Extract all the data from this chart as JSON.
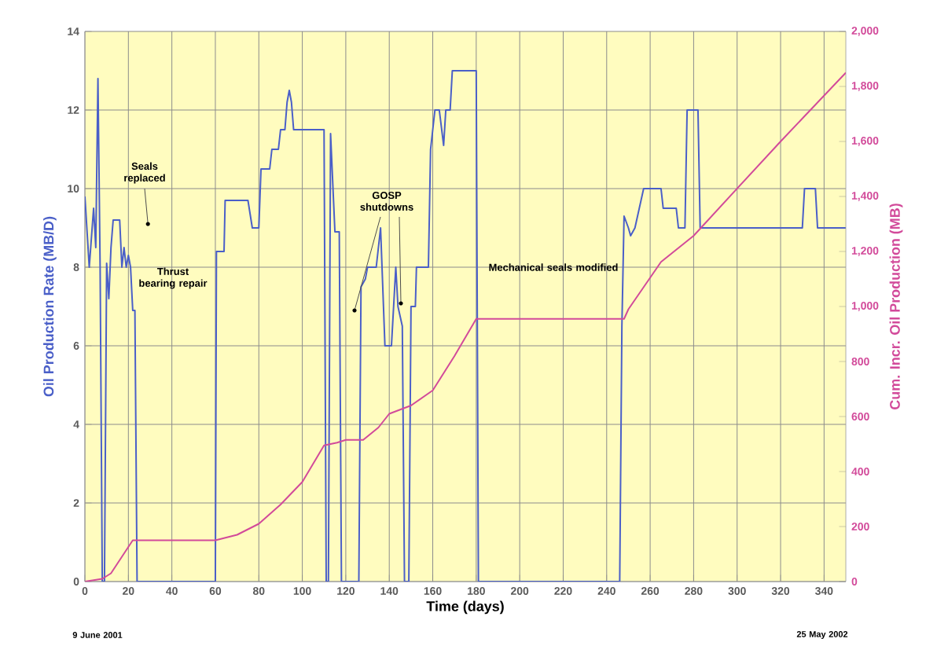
{
  "chart_data": {
    "type": "line",
    "xlabel": "Time (days)",
    "ylabel": "Oil Production Rate (MB/D)",
    "y2label": "Cum. Incr. Oil Production (MB)",
    "xlim": [
      0,
      350
    ],
    "xticks": [
      0,
      20,
      40,
      60,
      80,
      100,
      120,
      140,
      160,
      180,
      200,
      220,
      240,
      260,
      280,
      300,
      320,
      340
    ],
    "ylim": [
      0,
      14
    ],
    "yticks": [
      0,
      2,
      4,
      6,
      8,
      10,
      12,
      14
    ],
    "y2lim": [
      0,
      2000
    ],
    "y2ticks": [
      0,
      200,
      400,
      600,
      800,
      {
        "value": 1000,
        "label": "1,000"
      },
      {
        "value": 1200,
        "label": "1,200"
      },
      {
        "value": 1400,
        "label": "1,400"
      },
      {
        "value": 1600,
        "label": "1,600"
      },
      {
        "value": 1800,
        "label": "1,800"
      },
      {
        "value": 2000,
        "label": "2,000"
      }
    ],
    "grid": true,
    "series": [
      {
        "color": "#4a5fc8",
        "x": [
          0,
          2,
          4,
          5,
          6,
          7,
          8,
          9,
          10,
          11,
          12,
          13,
          16,
          17,
          18,
          19,
          20,
          21,
          22,
          23,
          24,
          60,
          60.5,
          64,
          64.5,
          75,
          77,
          80,
          81,
          85,
          86,
          89,
          90,
          92,
          93,
          94,
          95,
          96,
          110,
          111,
          112,
          113,
          115,
          117,
          118,
          126,
          127,
          129,
          130,
          134,
          136,
          137,
          138,
          141,
          142,
          143,
          144,
          146,
          147,
          149,
          150,
          152,
          152.5,
          158,
          159,
          161,
          163,
          165,
          166,
          168,
          169,
          180,
          181,
          246,
          247,
          248,
          250,
          251,
          253,
          257,
          265,
          266,
          272,
          273,
          276,
          277,
          282,
          283,
          330,
          331,
          336,
          337,
          350
        ],
        "values": [
          9.8,
          8,
          9.5,
          8.5,
          12.8,
          8,
          0,
          0,
          8.1,
          7.2,
          8.5,
          9.2,
          9.2,
          8,
          8.5,
          8,
          8.3,
          8,
          6.9,
          6.9,
          0,
          0,
          8.4,
          8.4,
          9.7,
          9.7,
          9,
          9,
          10.5,
          10.5,
          11,
          11,
          11.5,
          11.5,
          12.2,
          12.5,
          12.2,
          11.5,
          11.5,
          0,
          0,
          11.4,
          8.9,
          8.9,
          0,
          0,
          7.5,
          7.7,
          8,
          8,
          9,
          7.5,
          6,
          6,
          7,
          8,
          7,
          6.5,
          0,
          0,
          7,
          7,
          8,
          8,
          11,
          12,
          12,
          11.1,
          12,
          12,
          13,
          13,
          0,
          0,
          6.5,
          9.3,
          9,
          8.8,
          9,
          10,
          10,
          9.5,
          9.5,
          9,
          9,
          12,
          12,
          9,
          9,
          10,
          10,
          9,
          9
        ]
      },
      {
        "color": "#d24a9a",
        "axis": "y2",
        "x": [
          0,
          8,
          12,
          22,
          60,
          70,
          80,
          90,
          100,
          110,
          116,
          120,
          128,
          135,
          140,
          150,
          160,
          170,
          180,
          248,
          250,
          265,
          280,
          300,
          320,
          350
        ],
        "values": [
          0,
          10,
          30,
          150,
          150,
          170,
          210,
          280,
          362,
          495,
          505,
          515,
          515,
          560,
          610,
          640,
          695,
          820,
          955,
          955,
          990,
          1162,
          1257,
          1429,
          1600,
          1850
        ]
      }
    ],
    "annotations": [
      {
        "text": "Seals replaced",
        "x": 29,
        "y": 9.1
      },
      "Thrust bearing repair",
      {
        "text": "GOSP shutdowns",
        "x": 124,
        "y": 6.9
      },
      "Mechanical seals modified",
      "9 June 2001",
      "25 May 2002"
    ]
  }
}
